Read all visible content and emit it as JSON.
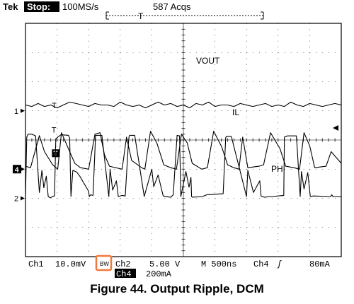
{
  "header": {
    "brand": "Tek",
    "run_state": "Stop:",
    "sample_rate": "100MS/s",
    "acquisitions": "587 Acqs",
    "trigger_label": "T"
  },
  "footer": {
    "ch1_label": "Ch1",
    "ch1_scale": "10.0mV",
    "bw_badge": "BW",
    "ch2_label": "Ch2",
    "ch2_scale": "5.00 V",
    "ch4_label": "Ch4",
    "ch4_scale": "200mA",
    "timebase": "M 500ns",
    "trigger_source": "Ch4",
    "trigger_slope": "ʃ",
    "trigger_level": "80mA"
  },
  "caption": "Figure 44. Output Ripple, DCM",
  "colors": {
    "screen_bg": "#ffffff",
    "trace": "#000000",
    "graticule": "#000000",
    "bw_highlight": "#f07a3c"
  },
  "chart_data": {
    "type": "line",
    "x_unit": "ns",
    "x_per_div": 500,
    "x_divisions": 10,
    "y_divisions": 8,
    "grid": true,
    "trigger_marker": "T",
    "series": [
      {
        "name": "VOUT",
        "channel_marker": "1",
        "scale": "10.0mV/div",
        "ground_div": 1.0,
        "label": "VOUT",
        "trigger_marker_x_ns": 450,
        "x": [
          0,
          100,
          200,
          300,
          400,
          500,
          600,
          700,
          800,
          900,
          1000,
          1100,
          1200,
          1300,
          1400,
          1500,
          1600,
          1700,
          1800,
          1900,
          2000,
          2100,
          2200,
          2300,
          2400,
          2500,
          2600,
          2700,
          2800,
          2900,
          3000,
          3100,
          3200,
          3300,
          3400,
          3500,
          3600,
          3700,
          3800,
          3900,
          4000,
          4100,
          4200,
          4300,
          4400,
          4500,
          4600,
          4700,
          4800,
          4900,
          5000
        ],
        "y_mV": [
          2.0,
          1.5,
          2.5,
          1.5,
          2.0,
          1.0,
          2.0,
          3.0,
          2.5,
          2.0,
          1.5,
          2.5,
          2.0,
          2.0,
          1.5,
          3.0,
          2.0,
          1.5,
          2.0,
          1.0,
          2.0,
          3.0,
          2.0,
          2.5,
          1.5,
          2.0,
          1.0,
          2.5,
          2.0,
          3.0,
          1.5,
          2.0,
          2.0,
          1.5,
          2.5,
          2.0,
          1.5,
          2.0,
          2.5,
          1.5,
          2.0,
          1.5,
          3.0,
          2.0,
          1.5,
          2.5,
          2.0,
          1.5,
          2.0,
          2.5,
          2.0
        ]
      },
      {
        "name": "IL",
        "channel_marker": "4",
        "scale": "200mA/div",
        "ground_div": -1.0,
        "label": "IL",
        "trigger_marker_x_ns": 475,
        "trigger_level_mA": 80,
        "x": [
          0,
          80,
          220,
          300,
          430,
          510,
          570,
          650,
          780,
          870,
          1000,
          1100,
          1180,
          1250,
          1330,
          1530,
          1600,
          1680,
          1840,
          1890,
          1980,
          2080,
          2190,
          2300,
          2390,
          2470,
          2560,
          2640,
          2790,
          2880,
          2980,
          3110,
          3200,
          3300,
          3380,
          3440,
          3520,
          3700,
          3770,
          3880,
          4030,
          4120,
          4250,
          4340,
          4410,
          4500,
          4580,
          4760,
          4840,
          5000
        ],
        "y_mA": [
          20,
          10,
          230,
          120,
          30,
          0,
          250,
          170,
          40,
          10,
          0,
          240,
          250,
          100,
          20,
          0,
          220,
          60,
          10,
          0,
          260,
          180,
          30,
          10,
          0,
          240,
          180,
          40,
          0,
          10,
          260,
          150,
          30,
          10,
          0,
          220,
          10,
          20,
          30,
          250,
          140,
          20,
          10,
          0,
          250,
          160,
          10,
          20,
          120,
          40
        ]
      },
      {
        "name": "PH",
        "channel_marker": "2",
        "scale": "5.00V/div",
        "ground_div": -2.0,
        "label": "PH",
        "trigger_marker_x_ns": 445,
        "x": [
          0,
          20,
          40,
          60,
          100,
          160,
          220,
          260,
          290,
          330,
          360,
          390,
          450,
          460,
          480,
          560,
          680,
          700,
          720,
          750,
          810,
          860,
          1000,
          1010,
          1030,
          1070,
          1110,
          1210,
          1320,
          1340,
          1380,
          1440,
          1470,
          1530,
          1580,
          1630,
          1640,
          1650,
          1730,
          1880,
          2000,
          2030,
          2100,
          2180,
          2290,
          2300,
          2320,
          2340,
          2400,
          2440,
          2460,
          2540,
          2590,
          2620,
          2630,
          2640,
          2800,
          2870,
          3130,
          3170,
          3180,
          3260,
          3500,
          3520,
          3610,
          3710,
          3730,
          3780,
          3870,
          3900,
          4090,
          4100,
          4150,
          4290,
          4350,
          4370,
          4410,
          4470,
          4510,
          4560,
          4830,
          4850,
          4870,
          5000
        ],
        "y_V": [
          0.3,
          10.5,
          11.0,
          11.0,
          11.0,
          10.7,
          1.0,
          4.8,
          1.8,
          3.8,
          0.3,
          0.1,
          0.4,
          0.4,
          10.2,
          10.9,
          10.8,
          10.3,
          0.3,
          4.8,
          4.5,
          3.8,
          1.2,
          0.3,
          0.6,
          0.5,
          10.8,
          10.8,
          0.3,
          5.0,
          1.4,
          3.0,
          0.3,
          0.5,
          0.4,
          9.5,
          10.6,
          10.8,
          10.8,
          0.3,
          5.0,
          2.0,
          4.0,
          0.4,
          0.2,
          0.2,
          0.4,
          0.6,
          10.8,
          10.7,
          0.3,
          4.6,
          1.9,
          3.6,
          0.3,
          0.2,
          0.3,
          0.6,
          0.8,
          10.4,
          10.6,
          10.6,
          0.3,
          4.8,
          1.0,
          3.0,
          0.4,
          0.2,
          0.3,
          0.3,
          0.5,
          10.5,
          10.7,
          10.7,
          0.3,
          4.6,
          1.6,
          4.4,
          0.3,
          0.4,
          0.3,
          0.6,
          0.3,
          0.3
        ]
      }
    ]
  }
}
